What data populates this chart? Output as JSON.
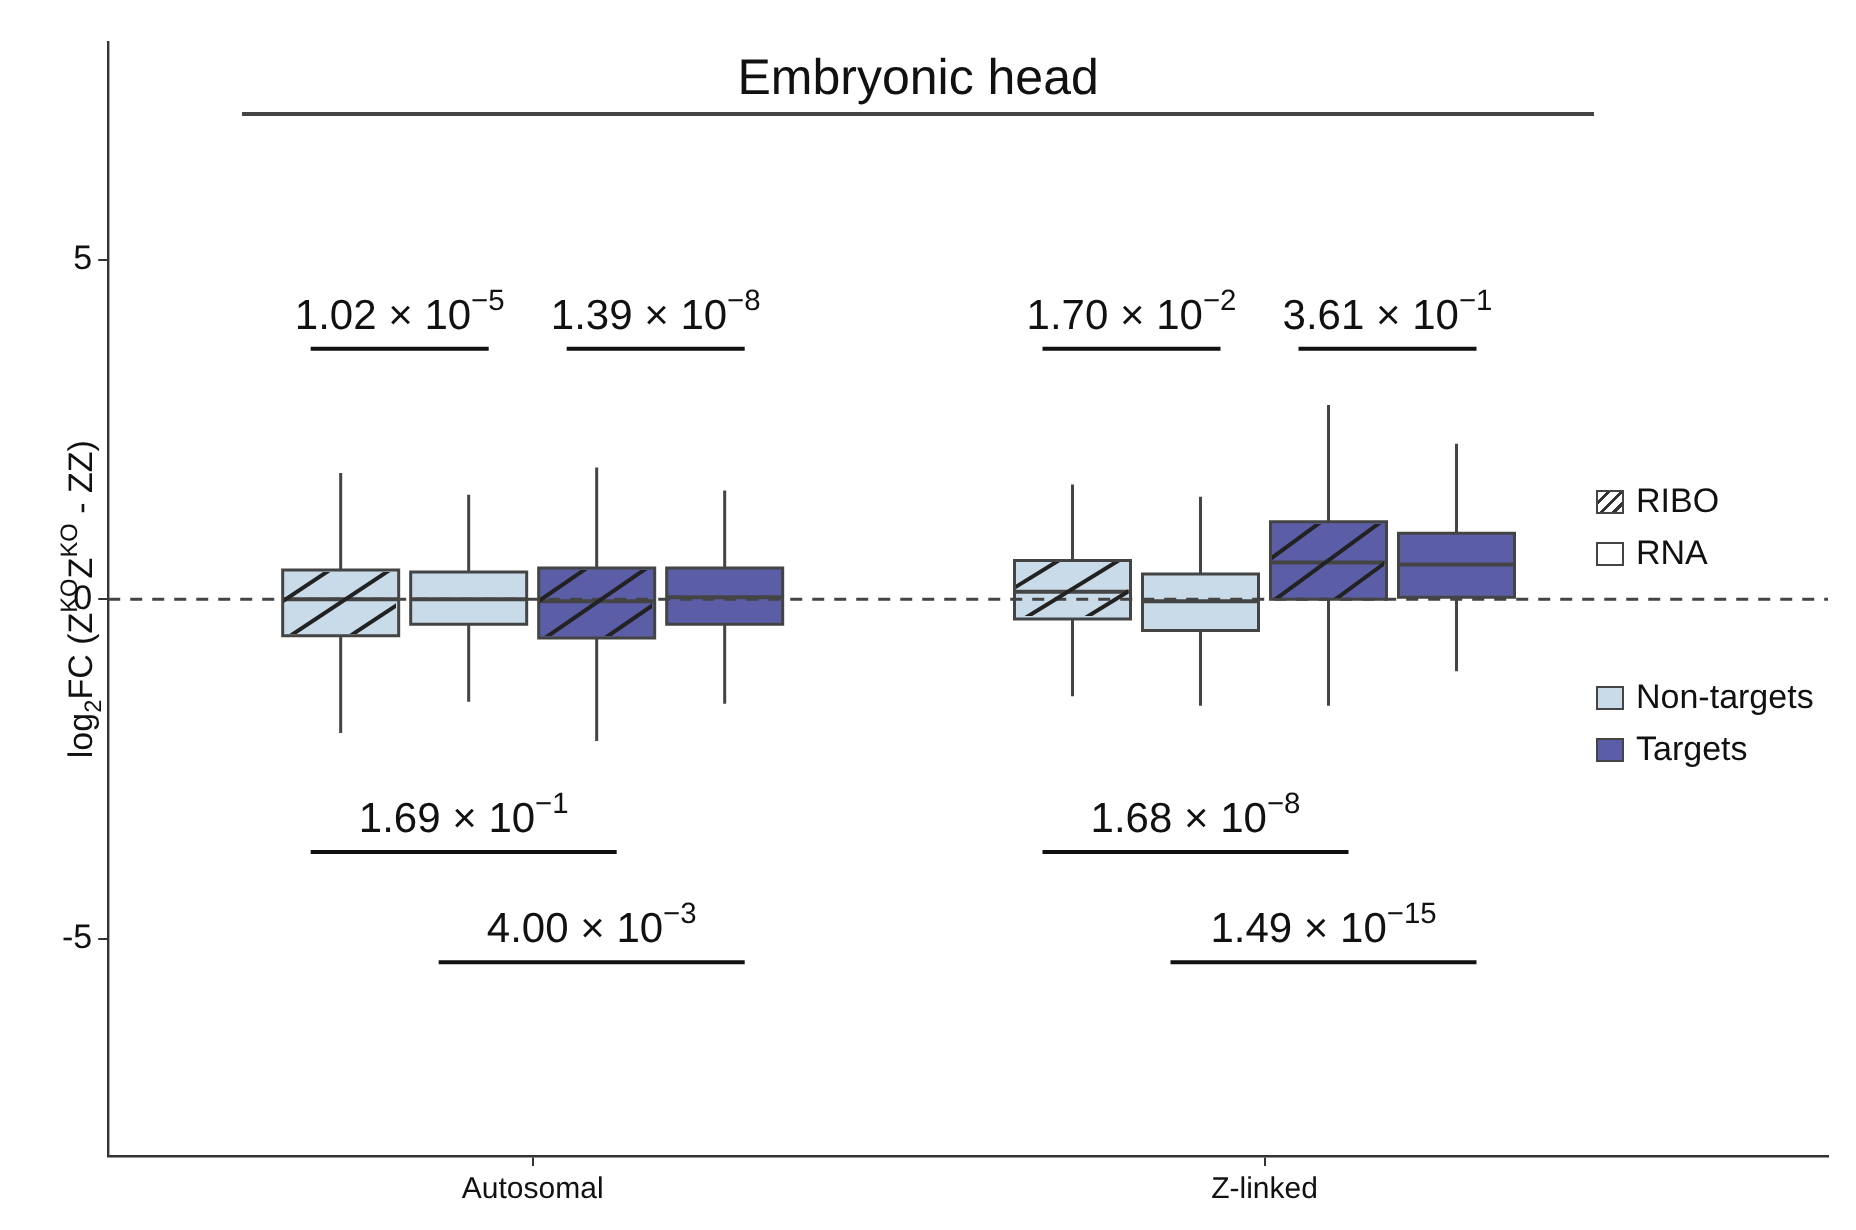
{
  "chart_data": {
    "type": "box",
    "title": "Embryonic head",
    "ylabel": "log$_{2}$FC (Z$^{KO}$Z$^{KO}$ - ZZ)",
    "categories": [
      "Autosomal",
      "Z-linked"
    ],
    "ylim": [
      -8.2,
      8.2
    ],
    "yticks": [
      -5,
      0,
      5
    ],
    "grid": false,
    "series": [
      {
        "color": "#c9dbe8",
        "boxes": [
          {
            "low": -1.97,
            "q1": -0.54,
            "median": 0,
            "q3": 0.43,
            "high": 1.86
          },
          {
            "low": -1.43,
            "q1": -0.29,
            "median": 0.11,
            "q3": 0.57,
            "high": 1.69
          }
        ]
      },
      {
        "color": "#c9dbe8",
        "boxes": [
          {
            "low": -1.51,
            "q1": -0.37,
            "median": 0,
            "q3": 0.4,
            "high": 1.54
          },
          {
            "low": -1.57,
            "q1": -0.46,
            "median": -0.03,
            "q3": 0.37,
            "high": 1.51
          }
        ]
      },
      {
        "color": "#5b5ea6",
        "boxes": [
          {
            "low": -2.09,
            "q1": -0.57,
            "median": -0.03,
            "q3": 0.46,
            "high": 1.94
          },
          {
            "low": -1.57,
            "q1": 0,
            "median": 0.54,
            "q3": 1.14,
            "high": 2.86
          }
        ]
      },
      {
        "color": "#5b5ea6",
        "boxes": [
          {
            "low": -1.54,
            "q1": -0.37,
            "median": 0.03,
            "q3": 0.46,
            "high": 1.6
          },
          {
            "low": -1.06,
            "q1": 0.03,
            "median": 0.51,
            "q3": 0.97,
            "high": 2.29
          }
        ]
      }
    ],
    "ref_lines": [
      {
        "axis": "y",
        "value": 0,
        "line_style": "dashed",
        "color": "#444444"
      }
    ],
    "annotations": [
      "1.02 × 10$^{−5}$",
      "1.39 × 10$^{−8}$",
      "1.69 × 10$^{−1}$",
      "4.00 × 10$^{−3}$",
      "1.70 × 10$^{−2}$",
      "3.61 × 10$^{−1}$",
      "1.68 × 10$^{−8}$",
      "1.49 × 10$^{−15}$",
      "RIBO",
      "RNA",
      "Non-targets",
      "Targets"
    ]
  }
}
